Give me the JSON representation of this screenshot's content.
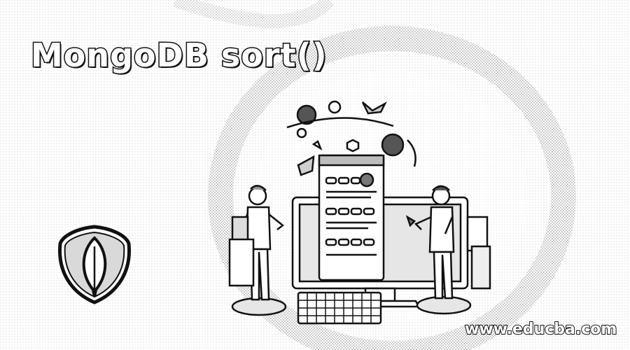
{
  "banner": {
    "title": "MongoDB sort()",
    "website": "www.educba.com"
  },
  "icons": {
    "logo": "mongodb-leaf-icon",
    "illustration": "developers-at-computer-illustration"
  },
  "colors": {
    "background": "#ffffff",
    "ink": "#111111",
    "halftone": "#bdbdbd"
  }
}
